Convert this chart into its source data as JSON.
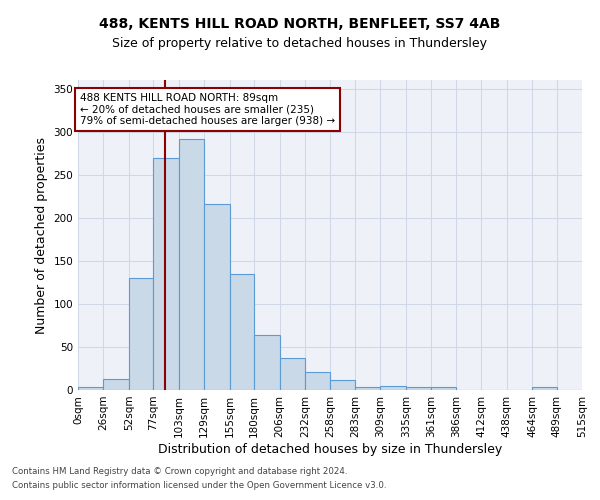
{
  "title1": "488, KENTS HILL ROAD NORTH, BENFLEET, SS7 4AB",
  "title2": "Size of property relative to detached houses in Thundersley",
  "xlabel": "Distribution of detached houses by size in Thundersley",
  "ylabel": "Number of detached properties",
  "footnote1": "Contains HM Land Registry data © Crown copyright and database right 2024.",
  "footnote2": "Contains public sector information licensed under the Open Government Licence v3.0.",
  "bin_edges": [
    0,
    26,
    52,
    77,
    103,
    129,
    155,
    180,
    206,
    232,
    258,
    283,
    309,
    335,
    361,
    386,
    412,
    438,
    464,
    489,
    515
  ],
  "bar_heights": [
    3,
    13,
    130,
    270,
    291,
    216,
    135,
    64,
    37,
    21,
    12,
    4,
    5,
    3,
    3,
    0,
    0,
    0,
    3,
    0
  ],
  "bar_color": "#c9d9e8",
  "bar_edge_color": "#5b9bd5",
  "grid_color": "#d0d8e8",
  "vline_x": 89,
  "vline_color": "#8b0000",
  "annotation_text": "488 KENTS HILL ROAD NORTH: 89sqm\n← 20% of detached houses are smaller (235)\n79% of semi-detached houses are larger (938) →",
  "annotation_box_color": "#ffffff",
  "annotation_box_edge": "#8b0000",
  "ylim": [
    0,
    360
  ],
  "yticks": [
    0,
    50,
    100,
    150,
    200,
    250,
    300,
    350
  ],
  "tick_labels": [
    "0sqm",
    "26sqm",
    "52sqm",
    "77sqm",
    "103sqm",
    "129sqm",
    "155sqm",
    "180sqm",
    "206sqm",
    "232sqm",
    "258sqm",
    "283sqm",
    "309sqm",
    "335sqm",
    "361sqm",
    "386sqm",
    "412sqm",
    "438sqm",
    "464sqm",
    "489sqm",
    "515sqm"
  ],
  "bg_color": "#eef2f8",
  "title_fontsize": 10,
  "subtitle_fontsize": 9,
  "ylabel_fontsize": 9,
  "xlabel_fontsize": 9,
  "tick_fontsize": 7.5,
  "annot_fontsize": 7.5,
  "footnote_fontsize": 6.2
}
